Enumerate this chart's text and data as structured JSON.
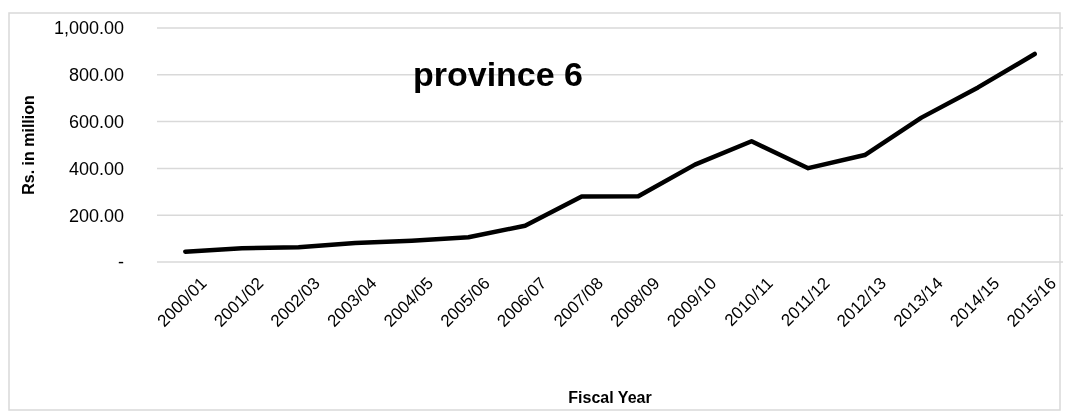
{
  "chart_data": {
    "type": "line",
    "title": "province 6",
    "xlabel": "Fiscal Year",
    "ylabel": "Rs. in million",
    "categories": [
      "2000/01",
      "2001/02",
      "2002/03",
      "2003/04",
      "2004/05",
      "2005/06",
      "2006/07",
      "2007/08",
      "2008/09",
      "2009/10",
      "2010/11",
      "2011/12",
      "2012/13",
      "2013/14",
      "2014/15",
      "2015/16"
    ],
    "series": [
      {
        "color": "#000000",
        "values": [
          44,
          59,
          63,
          81,
          91,
          106,
          155,
          280,
          281,
          416,
          516,
          401,
          457,
          617,
          746,
          889
        ]
      }
    ],
    "ylim": [
      0,
      1000
    ],
    "yticks": [
      {
        "value": 0,
        "label": "-"
      },
      {
        "value": 200,
        "label": "200.00"
      },
      {
        "value": 400,
        "label": "400.00"
      },
      {
        "value": 600,
        "label": "600.00"
      },
      {
        "value": 800,
        "label": "800.00"
      },
      {
        "value": 1000,
        "label": "1,000.00"
      }
    ],
    "grid": "y",
    "marker": "none",
    "line_style": "solid"
  }
}
